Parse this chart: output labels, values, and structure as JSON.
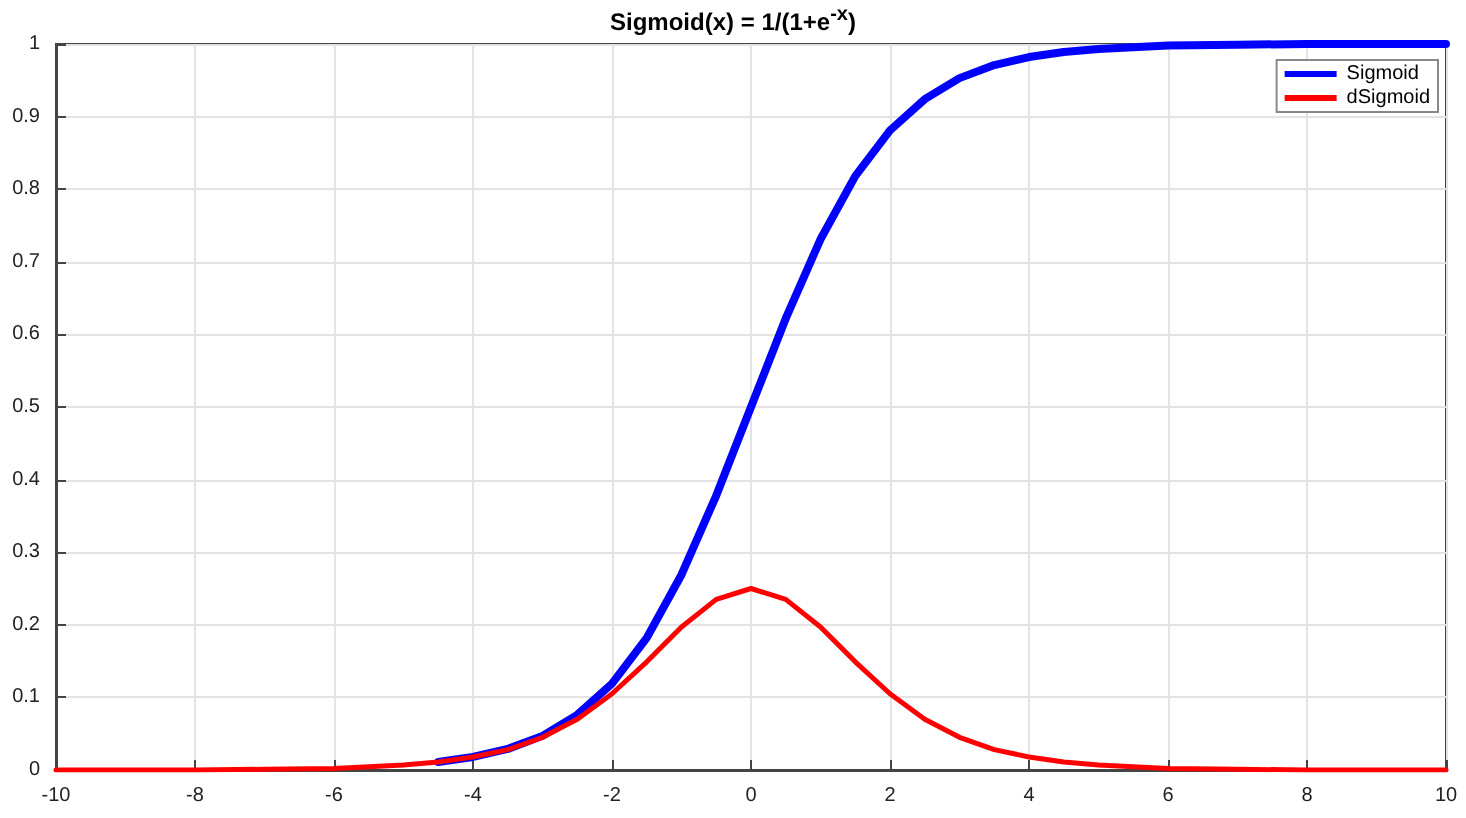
{
  "chart_data": {
    "type": "line",
    "title": "Sigmoid(x) = 1/(1+e$^{-x}$)",
    "x": [
      -10,
      -9,
      -8,
      -7,
      -6,
      -5,
      -4.5,
      -4,
      -3.5,
      -3,
      -2.5,
      -2,
      -1.5,
      -1,
      -0.5,
      0,
      0.5,
      1,
      1.5,
      2,
      2.5,
      3,
      3.5,
      4,
      4.5,
      5,
      6,
      7,
      8,
      9,
      10
    ],
    "series": [
      {
        "name": "Sigmoid",
        "color": "#0000ff",
        "values": [
          null,
          null,
          null,
          null,
          null,
          null,
          0.011,
          0.018,
          0.029,
          0.047,
          0.076,
          0.119,
          0.182,
          0.269,
          0.378,
          0.5,
          0.622,
          0.731,
          0.818,
          0.881,
          0.924,
          0.953,
          0.971,
          0.982,
          0.989,
          0.993,
          0.998,
          0.999,
          1,
          1,
          1
        ]
      },
      {
        "name": "dSigmoid",
        "color": "#ff0000",
        "values": [
          0,
          0,
          0,
          0.001,
          0.002,
          0.007,
          0.011,
          0.018,
          0.028,
          0.045,
          0.07,
          0.105,
          0.149,
          0.197,
          0.235,
          0.25,
          0.235,
          0.197,
          0.149,
          0.105,
          0.07,
          0.045,
          0.028,
          0.018,
          0.011,
          0.007,
          0.002,
          0.001,
          0,
          0,
          0
        ]
      }
    ],
    "xlim": [
      -10,
      10
    ],
    "xticks": [
      -10,
      -8,
      -6,
      -4,
      -2,
      0,
      2,
      4,
      6,
      8,
      10
    ],
    "ylim": [
      0,
      1
    ],
    "yticks": [
      0,
      0.1,
      0.2,
      0.3,
      0.4,
      0.5,
      0.6,
      0.7,
      0.8,
      0.9,
      1
    ],
    "grid": true,
    "legend": "top right",
    "marker": "none",
    "line_style": "solid"
  }
}
